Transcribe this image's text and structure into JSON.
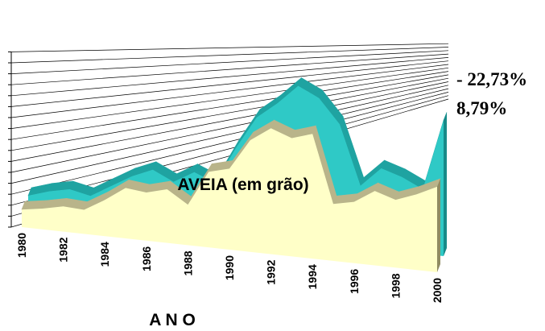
{
  "chart_data": {
    "type": "area",
    "title": "",
    "inner_label": "AVEIA (em grão)",
    "xlabel": "A N O",
    "ylabel": "",
    "x_tick_labels": [
      "1980",
      "1982",
      "1984",
      "1986",
      "1988",
      "1990",
      "1992",
      "1994",
      "1996",
      "1998",
      "2000"
    ],
    "ylim": [
      0,
      16
    ],
    "grid": true,
    "three_d": true,
    "series": [
      {
        "name": "back",
        "color": "#2fc9c6",
        "label": "- 22,73%",
        "x": [
          1980,
          1981,
          1982,
          1983,
          1984,
          1985,
          1986,
          1987,
          1988,
          1989,
          1990,
          1991,
          1992,
          1993,
          1994,
          1995,
          1996,
          1997,
          1998,
          1999,
          2000
        ],
        "values": [
          1.4,
          2.0,
          2.4,
          2.0,
          3.1,
          4.2,
          5.0,
          4.1,
          5.2,
          4.4,
          7.8,
          10.8,
          12.3,
          14.1,
          13.2,
          11.0,
          5.6,
          7.4,
          6.8,
          5.9,
          12.4
        ]
      },
      {
        "name": "front",
        "color": "#ffffc8",
        "label": "8,79%",
        "x": [
          1980,
          1981,
          1982,
          1983,
          1984,
          1985,
          1986,
          1987,
          1988,
          1989,
          1990,
          1991,
          1992,
          1993,
          1994,
          1995,
          1996,
          1997,
          1998,
          1999,
          2000
        ],
        "values": [
          1.6,
          1.9,
          2.3,
          2.2,
          3.3,
          4.6,
          4.4,
          4.9,
          3.7,
          6.9,
          7.4,
          10.2,
          11.5,
          10.8,
          11.4,
          5.2,
          5.6,
          6.8,
          6.2,
          6.9,
          7.8
        ]
      }
    ]
  }
}
